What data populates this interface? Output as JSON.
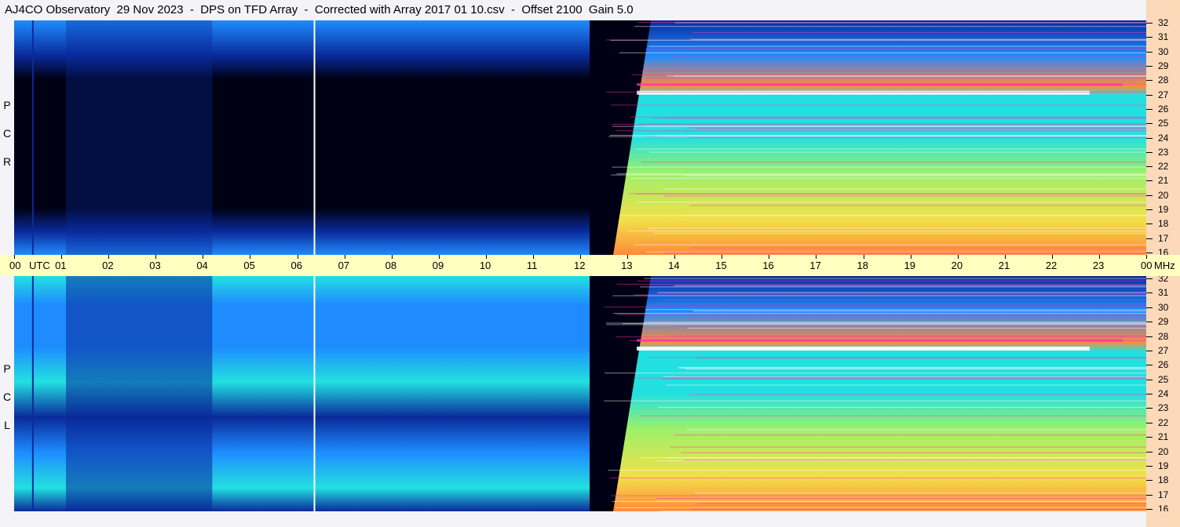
{
  "title": "AJ4CO Observatory  29 Nov 2023  -  DPS on TFD Array  -  Corrected with Array 2017 01 10.csv  -  Offset 2100  Gain 5.0",
  "panels": [
    {
      "label": [
        "R",
        "C",
        "P"
      ]
    },
    {
      "label": [
        "L",
        "C",
        "P"
      ]
    }
  ],
  "chart_data": {
    "type": "heatmap",
    "title": "AJ4CO Observatory  29 Nov 2023  -  DPS on TFD Array  -  Corrected with Array 2017 01 10.csv  -  Offset 2100  Gain 5.0",
    "x_label": "UTC",
    "y_unit": "MHz",
    "x_ticks": [
      "00",
      "01",
      "02",
      "03",
      "04",
      "05",
      "06",
      "07",
      "08",
      "09",
      "10",
      "11",
      "12",
      "13",
      "14",
      "15",
      "16",
      "17",
      "18",
      "19",
      "20",
      "21",
      "22",
      "23",
      "00"
    ],
    "y_ticks": [
      "32",
      "31",
      "30",
      "29",
      "28",
      "27",
      "26",
      "25",
      "24",
      "23",
      "22",
      "21",
      "20",
      "19",
      "18",
      "17",
      "16"
    ],
    "xlim_hours": [
      0,
      24
    ],
    "ylim_mhz": [
      16,
      32
    ],
    "colormap": [
      "#000014",
      "#0a2a9a",
      "#1e8cff",
      "#22e0e0",
      "#9cf06a",
      "#f2e04a",
      "#ff8a3a",
      "#ff2fb4",
      "#ffffff"
    ],
    "series": [
      {
        "name": "RCP",
        "sunrise_hour": 12.2
      },
      {
        "name": "LCP",
        "sunrise_hour": 12.2
      }
    ]
  }
}
